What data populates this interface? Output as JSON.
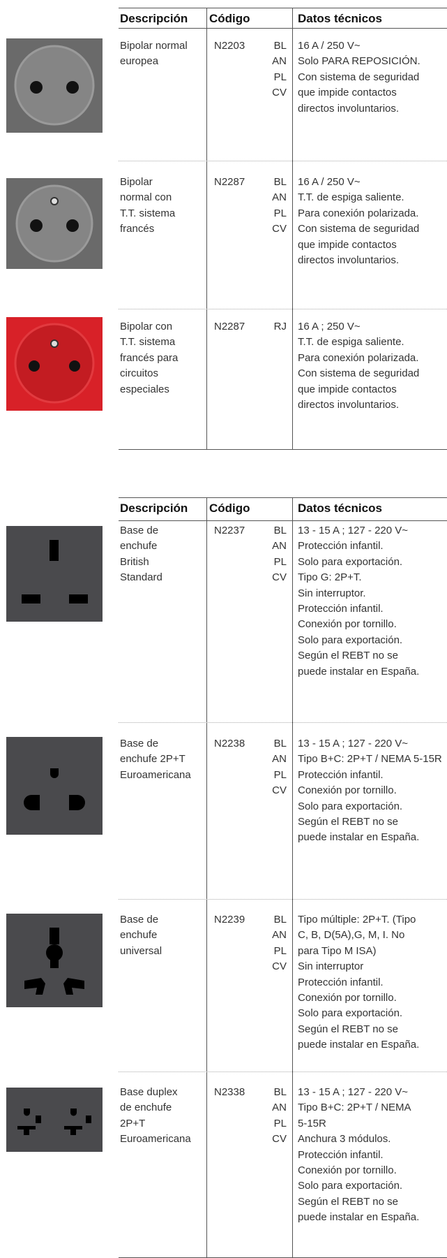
{
  "tables": [
    {
      "columns": [
        "Descripción",
        "Código",
        "Datos técnicos"
      ],
      "rows": [
        {
          "description": [
            "Bipolar normal",
            "europea"
          ],
          "code": "N2203",
          "colors": [
            "BL",
            "AN",
            "PL",
            "CV"
          ],
          "specs": [
            "16 A / 250 V~",
            "Solo PARA REPOSICIÓN.",
            "Con sistema de seguridad",
            "que impide contactos",
            "directos involuntarios."
          ]
        },
        {
          "description": [
            "Bipolar",
            "normal con",
            "T.T. sistema",
            "francés"
          ],
          "code": "N2287",
          "colors": [
            "BL",
            "AN",
            "PL",
            "CV"
          ],
          "specs": [
            "16 A / 250 V~",
            "T.T. de espiga saliente.",
            "Para conexión polarizada.",
            "Con sistema de seguridad",
            "que impide contactos",
            "directos involuntarios."
          ]
        },
        {
          "description": [
            "Bipolar con",
            "T.T. sistema",
            "francés para",
            "circuitos",
            "especiales"
          ],
          "code": "N2287",
          "colors": [
            "RJ"
          ],
          "specs": [
            "16 A ; 250 V~",
            "T.T. de espiga saliente.",
            "Para conexión polarizada.",
            "Con sistema de seguridad",
            "que impide contactos",
            "directos involuntarios."
          ]
        }
      ]
    },
    {
      "columns": [
        "Descripción",
        "Código",
        "Datos técnicos"
      ],
      "rows": [
        {
          "description": [
            "Base de",
            "enchufe",
            "British",
            "Standard"
          ],
          "code": "N2237",
          "colors": [
            "BL",
            "AN",
            "PL",
            "CV"
          ],
          "specs": [
            "13 - 15 A ; 127 - 220 V~",
            "Protección infantil.",
            "Solo para exportación.",
            "Tipo G: 2P+T.",
            "Sin interruptor.",
            "Protección infantil.",
            "Conexión por tornillo.",
            "Solo para exportación.",
            "Según el REBT no se",
            "puede instalar en España."
          ]
        },
        {
          "description": [
            "Base de",
            "enchufe 2P+T",
            "Euroamericana"
          ],
          "code": "N2238",
          "colors": [
            "BL",
            "AN",
            "PL",
            "CV"
          ],
          "specs": [
            "13 - 15 A ; 127 - 220 V~",
            "Tipo B+C: 2P+T / NEMA 5-15R",
            "Protección infantil.",
            "Conexión por tornillo.",
            "Solo para exportación.",
            "Según el REBT no se",
            "puede instalar en España."
          ]
        },
        {
          "description": [
            "Base de",
            "enchufe",
            "universal"
          ],
          "code": "N2239",
          "colors": [
            "BL",
            "AN",
            "PL",
            "CV"
          ],
          "specs": [
            "Tipo múltiple: 2P+T. (Tipo",
            "C, B, D(5A),G, M, I. No",
            "para Tipo M ISA)",
            "Sin interruptor",
            "Protección infantil.",
            "Conexión por tornillo.",
            "Solo para exportación.",
            "Según el REBT no se",
            "puede instalar en España."
          ]
        },
        {
          "description": [
            "Base duplex",
            "de enchufe",
            "2P+T",
            "Euroamericana"
          ],
          "code": "N2338",
          "colors": [
            "BL",
            "AN",
            "PL",
            "CV"
          ],
          "specs": [
            "13 - 15 A ; 127 - 220 V~",
            "Tipo B+C: 2P+T / NEMA",
            "5-15R",
            "Anchura 3 módulos.",
            "Protección infantil.",
            "Conexión por tornillo.",
            "Solo para exportación.",
            "Según el REBT no se",
            "puede instalar en España."
          ]
        }
      ]
    }
  ]
}
